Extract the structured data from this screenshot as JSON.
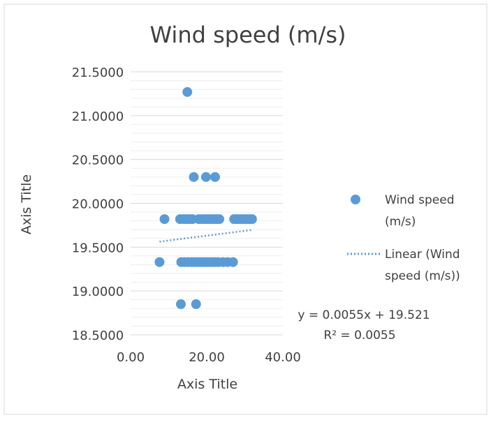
{
  "chart_data": {
    "type": "scatter",
    "title": "Wind speed (m/s)",
    "xlabel": "Axis Title",
    "ylabel": "Axis Title",
    "xlim": [
      0,
      40
    ],
    "ylim": [
      18.5,
      21.5
    ],
    "xtick_labels": [
      "0.00",
      "20.00",
      "40.00"
    ],
    "ytick_labels": [
      "21.5000",
      "21.0000",
      "20.5000",
      "20.0000",
      "19.5000",
      "19.0000",
      "18.5000"
    ],
    "grid": true,
    "legend_position": "right",
    "series": [
      {
        "name": "Wind speed (m/s)",
        "legend_lines": [
          "Wind speed",
          "(m/s)"
        ],
        "color": "#5B9BD5",
        "points": [
          [
            14.9,
            21.27
          ],
          [
            16.6,
            20.3
          ],
          [
            19.8,
            20.3
          ],
          [
            22.2,
            20.3
          ],
          [
            8.9,
            19.82
          ],
          [
            13.0,
            19.82
          ],
          [
            14.0,
            19.82
          ],
          [
            14.8,
            19.82
          ],
          [
            15.5,
            19.82
          ],
          [
            16.2,
            19.82
          ],
          [
            17.9,
            19.82
          ],
          [
            18.8,
            19.82
          ],
          [
            19.6,
            19.82
          ],
          [
            20.3,
            19.82
          ],
          [
            21.1,
            19.82
          ],
          [
            21.9,
            19.82
          ],
          [
            22.6,
            19.82
          ],
          [
            23.3,
            19.82
          ],
          [
            27.2,
            19.82
          ],
          [
            28.0,
            19.82
          ],
          [
            28.8,
            19.82
          ],
          [
            29.6,
            19.82
          ],
          [
            30.4,
            19.82
          ],
          [
            31.2,
            19.82
          ],
          [
            31.9,
            19.82
          ],
          [
            7.6,
            19.33
          ],
          [
            13.3,
            19.33
          ],
          [
            14.2,
            19.33
          ],
          [
            15.1,
            19.33
          ],
          [
            15.9,
            19.33
          ],
          [
            16.6,
            19.33
          ],
          [
            17.3,
            19.33
          ],
          [
            18.0,
            19.33
          ],
          [
            18.7,
            19.33
          ],
          [
            19.4,
            19.33
          ],
          [
            20.1,
            19.33
          ],
          [
            20.8,
            19.33
          ],
          [
            21.5,
            19.33
          ],
          [
            22.2,
            19.33
          ],
          [
            23.0,
            19.33
          ],
          [
            24.3,
            19.33
          ],
          [
            25.5,
            19.33
          ],
          [
            26.9,
            19.33
          ],
          [
            13.2,
            18.85
          ],
          [
            17.2,
            18.85
          ]
        ]
      },
      {
        "name": "Linear (Wind speed (m/s))",
        "legend_lines": [
          "Linear (Wind",
          "speed (m/s))"
        ],
        "color": "#5B9BD5",
        "style": "dotted",
        "trendline": {
          "slope": 0.0055,
          "intercept": 19.521,
          "x_range": [
            7.6,
            31.9
          ]
        }
      }
    ],
    "annotations": [
      "y = 0.0055x + 19.521",
      "R² = 0.0055"
    ]
  }
}
